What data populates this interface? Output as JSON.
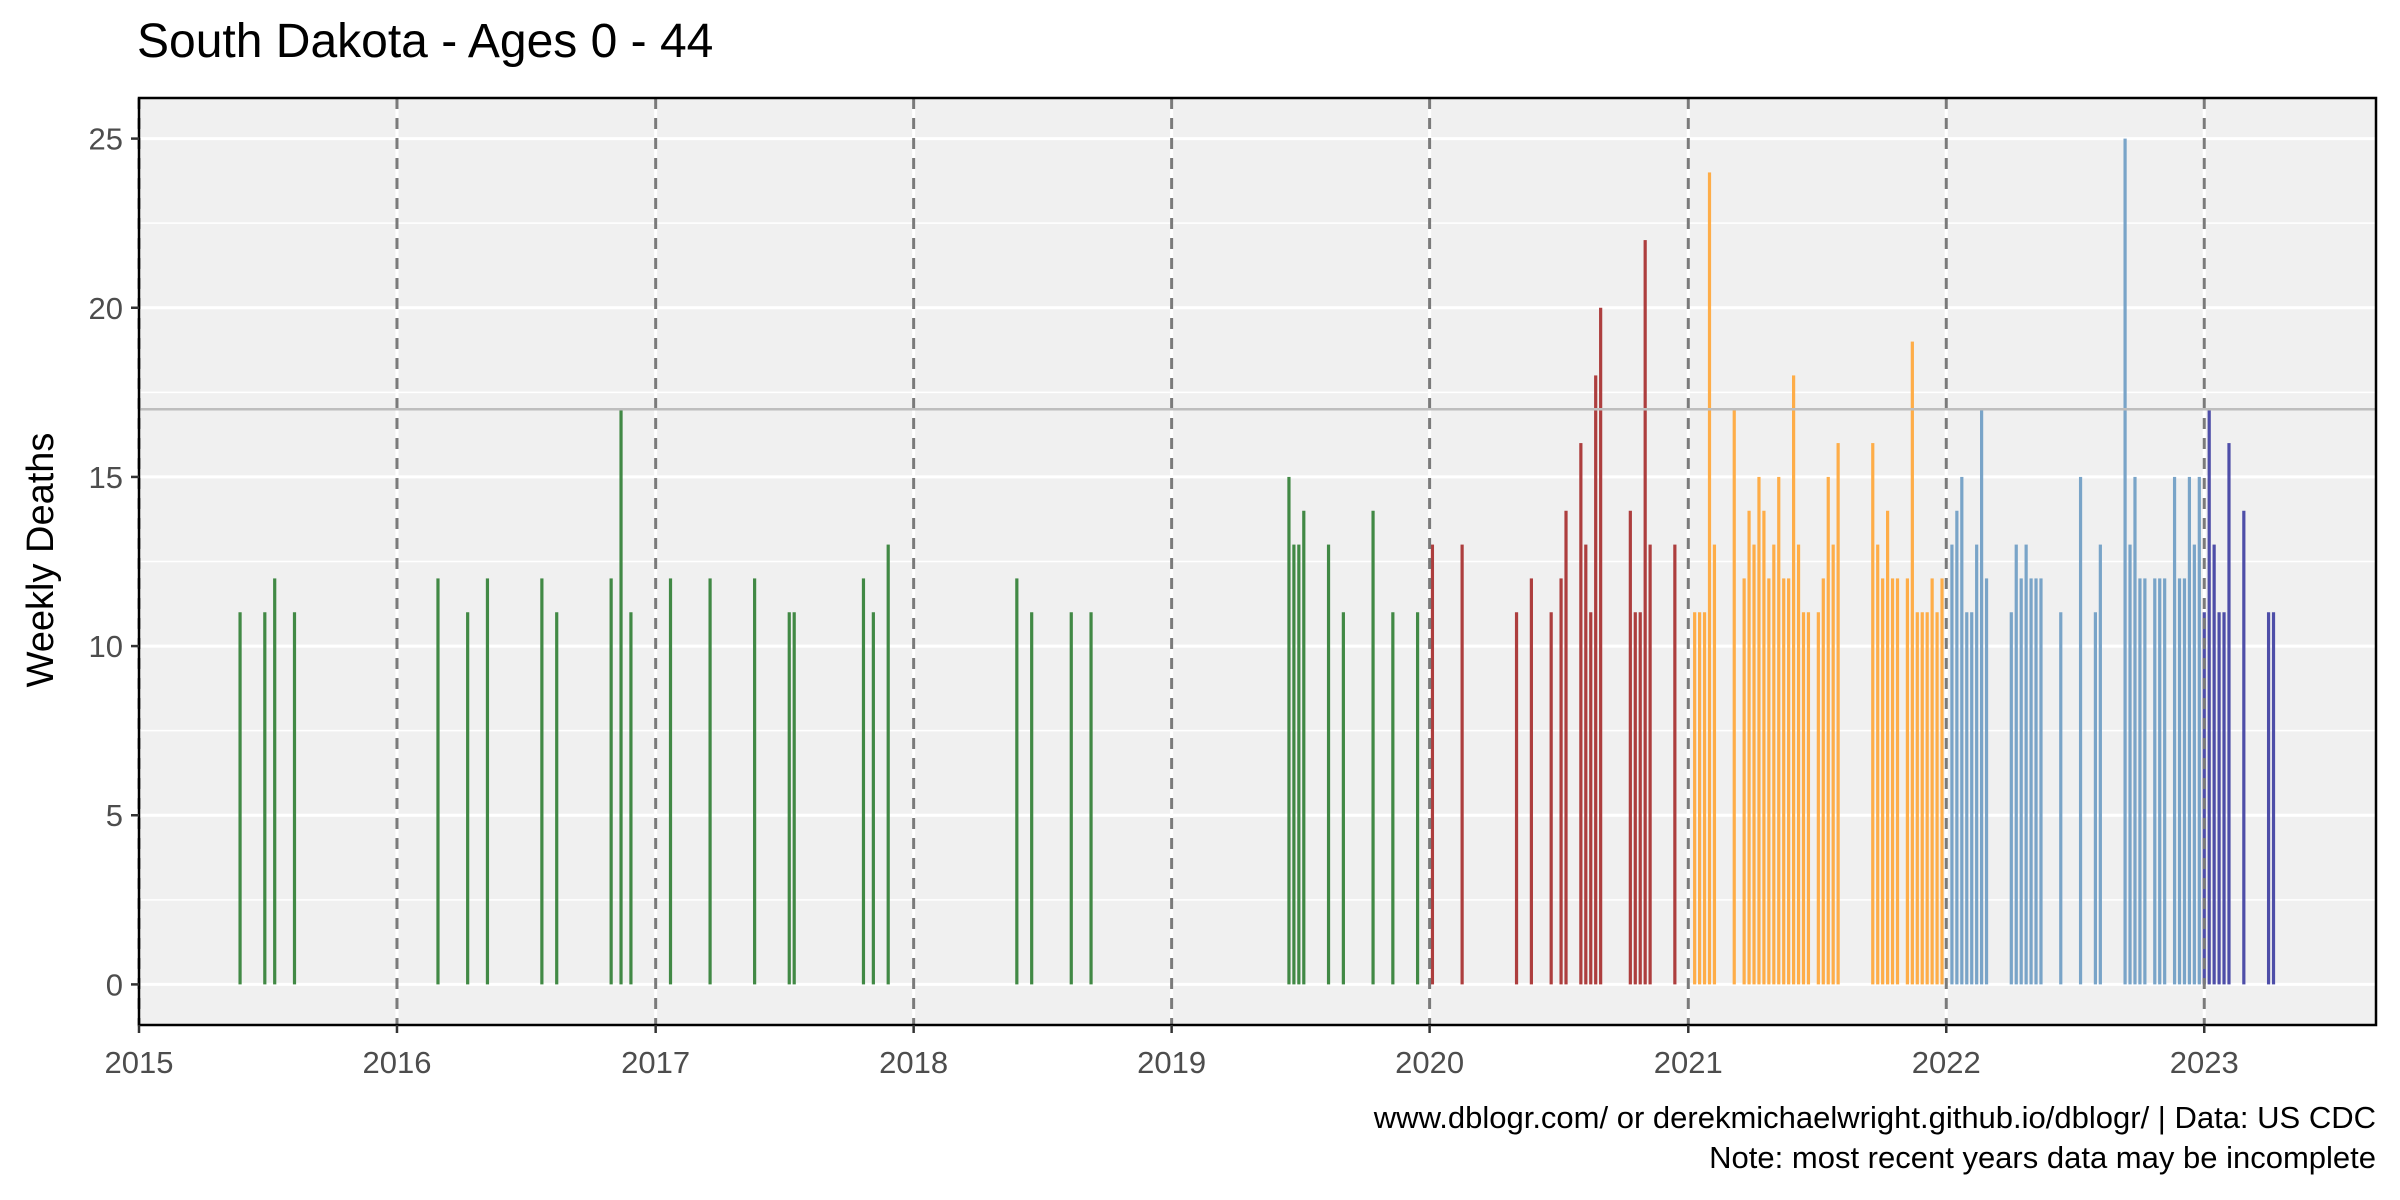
{
  "chart_data": {
    "type": "bar",
    "title": "South Dakota  - Ages 0 - 44",
    "xlabel": "",
    "ylabel": "Weekly Deaths",
    "xlim": [
      "2015-01-01",
      "2023-09-01"
    ],
    "ylim": [
      -1.2,
      26.2
    ],
    "y_ticks": [
      0,
      5,
      10,
      15,
      20,
      25
    ],
    "x_ticks": [
      "2015",
      "2016",
      "2017",
      "2018",
      "2019",
      "2020",
      "2021",
      "2022",
      "2023"
    ],
    "grid": true,
    "legend": "none",
    "reference_line": 17,
    "colors": {
      "panel_background": "#f0f0f0",
      "grid": "#ffffff",
      "year_divider": "#7a7a7a",
      "reference_line": "#bdbdbd"
    },
    "series": [
      {
        "color": "#2e7d32",
        "points": [
          [
            "2015-05-24",
            11
          ],
          [
            "2015-06-28",
            11
          ],
          [
            "2015-07-12",
            12
          ],
          [
            "2015-08-09",
            11
          ],
          [
            "2016-02-28",
            12
          ],
          [
            "2016-04-10",
            11
          ],
          [
            "2016-05-08",
            12
          ],
          [
            "2016-07-24",
            12
          ],
          [
            "2016-08-14",
            11
          ],
          [
            "2016-10-30",
            12
          ],
          [
            "2016-11-13",
            17
          ],
          [
            "2016-11-27",
            11
          ],
          [
            "2017-01-22",
            12
          ],
          [
            "2017-03-19",
            12
          ],
          [
            "2017-05-21",
            12
          ],
          [
            "2017-07-09",
            11
          ],
          [
            "2017-07-16",
            11
          ],
          [
            "2017-10-22",
            12
          ],
          [
            "2017-11-05",
            11
          ],
          [
            "2017-11-26",
            13
          ],
          [
            "2018-05-27",
            12
          ],
          [
            "2018-06-17",
            11
          ],
          [
            "2018-08-12",
            11
          ],
          [
            "2018-09-09",
            11
          ],
          [
            "2019-06-16",
            15
          ],
          [
            "2019-06-23",
            13
          ],
          [
            "2019-06-30",
            13
          ],
          [
            "2019-07-07",
            14
          ],
          [
            "2019-08-11",
            13
          ],
          [
            "2019-09-01",
            11
          ],
          [
            "2019-10-13",
            14
          ],
          [
            "2019-11-10",
            11
          ],
          [
            "2019-12-15",
            11
          ]
        ]
      },
      {
        "color": "#a52a2a",
        "points": [
          [
            "2020-01-05",
            13
          ],
          [
            "2020-02-16",
            13
          ],
          [
            "2020-05-03",
            11
          ],
          [
            "2020-05-24",
            12
          ],
          [
            "2020-06-21",
            11
          ],
          [
            "2020-07-05",
            12
          ],
          [
            "2020-07-12",
            14
          ],
          [
            "2020-08-02",
            16
          ],
          [
            "2020-08-09",
            13
          ],
          [
            "2020-08-16",
            11
          ],
          [
            "2020-08-23",
            18
          ],
          [
            "2020-08-30",
            20
          ],
          [
            "2020-10-11",
            14
          ],
          [
            "2020-10-18",
            11
          ],
          [
            "2020-10-25",
            11
          ],
          [
            "2020-11-01",
            22
          ],
          [
            "2020-11-08",
            13
          ],
          [
            "2020-12-13",
            13
          ]
        ]
      },
      {
        "color": "#ffa535",
        "points": [
          [
            "2021-01-10",
            11
          ],
          [
            "2021-01-17",
            11
          ],
          [
            "2021-01-24",
            11
          ],
          [
            "2021-01-31",
            24
          ],
          [
            "2021-02-07",
            13
          ],
          [
            "2021-03-07",
            17
          ],
          [
            "2021-03-21",
            12
          ],
          [
            "2021-03-28",
            14
          ],
          [
            "2021-04-04",
            13
          ],
          [
            "2021-04-11",
            15
          ],
          [
            "2021-04-18",
            14
          ],
          [
            "2021-04-25",
            12
          ],
          [
            "2021-05-02",
            13
          ],
          [
            "2021-05-09",
            15
          ],
          [
            "2021-05-16",
            12
          ],
          [
            "2021-05-23",
            12
          ],
          [
            "2021-05-30",
            18
          ],
          [
            "2021-06-06",
            13
          ],
          [
            "2021-06-13",
            11
          ],
          [
            "2021-06-20",
            11
          ],
          [
            "2021-07-04",
            11
          ],
          [
            "2021-07-11",
            12
          ],
          [
            "2021-07-18",
            15
          ],
          [
            "2021-07-25",
            13
          ],
          [
            "2021-08-01",
            16
          ],
          [
            "2021-09-19",
            16
          ],
          [
            "2021-09-26",
            13
          ],
          [
            "2021-10-03",
            12
          ],
          [
            "2021-10-10",
            14
          ],
          [
            "2021-10-17",
            12
          ],
          [
            "2021-10-24",
            12
          ],
          [
            "2021-11-07",
            12
          ],
          [
            "2021-11-14",
            19
          ],
          [
            "2021-11-21",
            11
          ],
          [
            "2021-11-28",
            11
          ],
          [
            "2021-12-05",
            11
          ],
          [
            "2021-12-12",
            12
          ],
          [
            "2021-12-19",
            11
          ],
          [
            "2021-12-26",
            12
          ]
        ]
      },
      {
        "color": "#6b9bc3",
        "points": [
          [
            "2022-01-09",
            13
          ],
          [
            "2022-01-16",
            14
          ],
          [
            "2022-01-23",
            15
          ],
          [
            "2022-01-30",
            11
          ],
          [
            "2022-02-06",
            11
          ],
          [
            "2022-02-13",
            13
          ],
          [
            "2022-02-20",
            17
          ],
          [
            "2022-02-27",
            12
          ],
          [
            "2022-04-03",
            11
          ],
          [
            "2022-04-10",
            13
          ],
          [
            "2022-04-17",
            12
          ],
          [
            "2022-04-24",
            13
          ],
          [
            "2022-05-01",
            12
          ],
          [
            "2022-05-08",
            12
          ],
          [
            "2022-05-15",
            12
          ],
          [
            "2022-06-12",
            11
          ],
          [
            "2022-07-10",
            15
          ],
          [
            "2022-07-31",
            11
          ],
          [
            "2022-08-07",
            13
          ],
          [
            "2022-09-11",
            25
          ],
          [
            "2022-09-18",
            13
          ],
          [
            "2022-09-25",
            15
          ],
          [
            "2022-10-02",
            12
          ],
          [
            "2022-10-09",
            12
          ],
          [
            "2022-10-23",
            12
          ],
          [
            "2022-10-30",
            12
          ],
          [
            "2022-11-06",
            12
          ],
          [
            "2022-11-20",
            15
          ],
          [
            "2022-11-27",
            12
          ],
          [
            "2022-12-04",
            12
          ],
          [
            "2022-12-11",
            15
          ],
          [
            "2022-12-18",
            13
          ],
          [
            "2022-12-25",
            15
          ]
        ]
      },
      {
        "color": "#3c3ca0",
        "points": [
          [
            "2023-01-01",
            11
          ],
          [
            "2023-01-08",
            17
          ],
          [
            "2023-01-15",
            13
          ],
          [
            "2023-01-22",
            11
          ],
          [
            "2023-01-29",
            11
          ],
          [
            "2023-02-05",
            16
          ],
          [
            "2023-02-26",
            14
          ],
          [
            "2023-04-02",
            11
          ],
          [
            "2023-04-09",
            11
          ]
        ]
      }
    ],
    "caption": [
      "www.dblogr.com/ or derekmichaelwright.github.io/dblogr/ | Data: US CDC",
      "Note: most recent years data may be incomplete"
    ]
  }
}
